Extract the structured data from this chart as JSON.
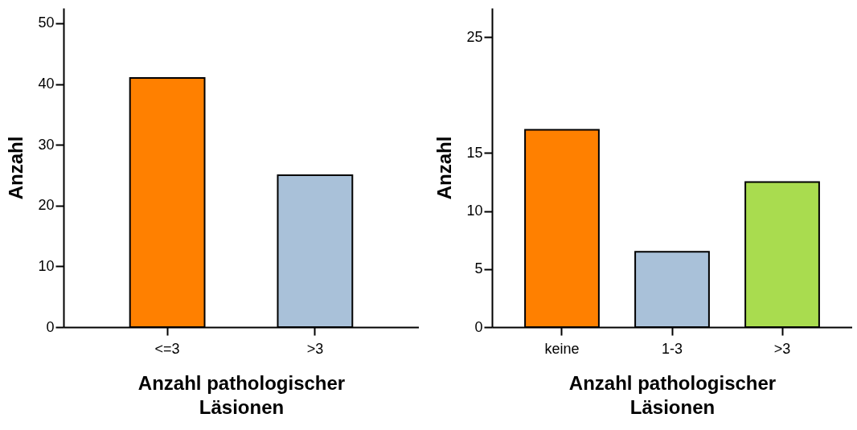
{
  "chart_data": [
    {
      "type": "bar",
      "xlabel": "Anzahl pathologischer\nLäsionen",
      "ylabel": "Anzahl",
      "categories": [
        "<=3",
        ">3"
      ],
      "values": [
        41,
        25
      ],
      "colors": [
        "#ff8000",
        "#a9c1d9"
      ],
      "ylim": [
        0,
        52.5
      ],
      "yticks": [
        0,
        10,
        20,
        30,
        40,
        50
      ]
    },
    {
      "type": "bar",
      "xlabel": "Anzahl pathologischer\nLäsionen",
      "ylabel": "Anzahl",
      "categories": [
        "keine",
        "1-3",
        ">3"
      ],
      "values": [
        17,
        6.5,
        12.5
      ],
      "colors": [
        "#ff8000",
        "#a9c1d9",
        "#a9dc4f"
      ],
      "ylim": [
        0,
        27.5
      ],
      "yticks": [
        0,
        5,
        10,
        15,
        25
      ]
    }
  ]
}
